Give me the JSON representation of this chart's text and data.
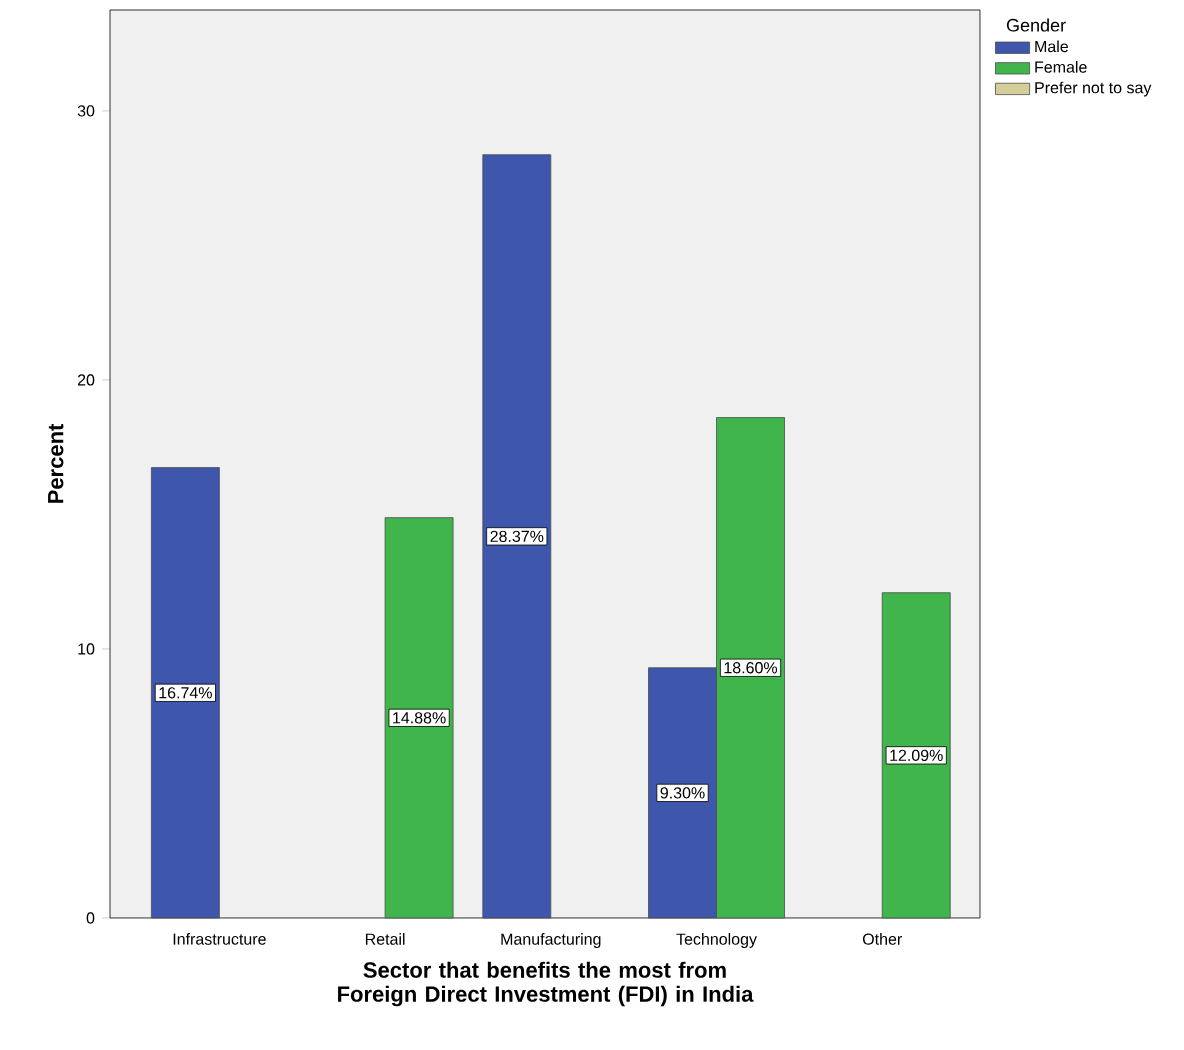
{
  "chart_data": {
    "type": "bar",
    "xlabel": "Sector that benefits the most from Foreign Direct Investment (FDI) in India",
    "ylabel": "Percent",
    "legend_title": "Gender",
    "categories": [
      "Infrastructure",
      "Retail",
      "Manufacturing",
      "Technology",
      "Other"
    ],
    "series": [
      {
        "name": "Male",
        "color": "#3e56ab",
        "values": [
          16.74,
          null,
          28.37,
          9.3,
          null
        ],
        "value_labels": [
          "16.74%",
          null,
          "28.37%",
          "9.30%",
          null
        ]
      },
      {
        "name": "Female",
        "color": "#3fb54c",
        "values": [
          null,
          14.88,
          null,
          18.6,
          12.09
        ],
        "value_labels": [
          null,
          "14.88%",
          null,
          "18.60%",
          "12.09%"
        ]
      },
      {
        "name": "Prefer not to say",
        "color": "#d4cf98",
        "values": [
          null,
          null,
          null,
          null,
          null
        ]
      }
    ],
    "ylim": [
      0,
      33.75
    ],
    "yticks": [
      0,
      10,
      20,
      30
    ],
    "legend": "right",
    "grid": false
  }
}
